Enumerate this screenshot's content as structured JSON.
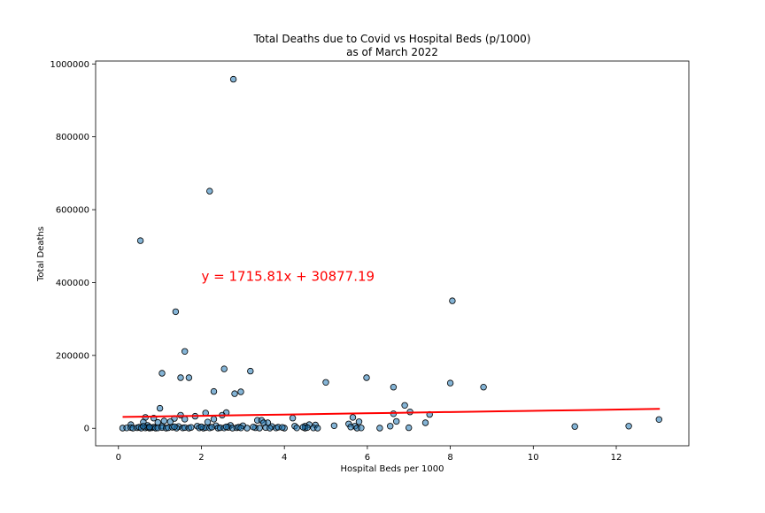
{
  "chart_data": {
    "type": "scatter",
    "title": "Total Deaths due to Covid vs Hospital Beds (p/1000)",
    "subtitle": "as of March 2022",
    "xlabel": "Hospital Beds per 1000",
    "ylabel": "Total Deaths",
    "xlim": [
      -0.55,
      13.75
    ],
    "ylim": [
      -48000,
      1008000
    ],
    "xticks": [
      0,
      2,
      4,
      6,
      8,
      10,
      12
    ],
    "yticks": [
      0,
      200000,
      400000,
      600000,
      800000,
      1000000
    ],
    "grid": false,
    "legend": "none",
    "colors": {
      "points": "#1f77b4",
      "point_edge": "#000000",
      "regression": "#ff0000",
      "annotation": "#ff0000"
    },
    "annotation": {
      "text": "y = 1715.81x + 30877.19",
      "x": 2.0,
      "y": 405000
    },
    "regression": {
      "slope": 1715.81,
      "intercept": 30877.19,
      "x_range": [
        0.1,
        13.05
      ]
    },
    "points": [
      [
        2.77,
        958000
      ],
      [
        2.2,
        651000
      ],
      [
        0.53,
        515000
      ],
      [
        1.38,
        320000
      ],
      [
        8.05,
        350000
      ],
      [
        1.6,
        211000
      ],
      [
        2.55,
        163000
      ],
      [
        3.18,
        157000
      ],
      [
        1.05,
        151000
      ],
      [
        1.5,
        139000
      ],
      [
        1.7,
        139000
      ],
      [
        5.98,
        139000
      ],
      [
        5.0,
        126000
      ],
      [
        8.0,
        124000
      ],
      [
        8.8,
        113000
      ],
      [
        6.63,
        113000
      ],
      [
        2.3,
        101000
      ],
      [
        2.95,
        100000
      ],
      [
        2.8,
        95000
      ],
      [
        6.9,
        63000
      ],
      [
        1.0,
        55000
      ],
      [
        2.6,
        43000
      ],
      [
        2.1,
        42000
      ],
      [
        7.03,
        45000
      ],
      [
        7.5,
        38000
      ],
      [
        6.63,
        40000
      ],
      [
        2.5,
        36000
      ],
      [
        1.5,
        36000
      ],
      [
        1.85,
        33000
      ],
      [
        0.65,
        30000
      ],
      [
        0.85,
        28000
      ],
      [
        1.35,
        27000
      ],
      [
        1.6,
        25000
      ],
      [
        2.3,
        25000
      ],
      [
        4.2,
        28000
      ],
      [
        5.65,
        30000
      ],
      [
        13.03,
        24000
      ],
      [
        3.35,
        22000
      ],
      [
        3.45,
        22000
      ],
      [
        6.7,
        19000
      ],
      [
        7.4,
        15000
      ],
      [
        5.8,
        18000
      ],
      [
        1.1,
        20000
      ],
      [
        1.25,
        18000
      ],
      [
        0.6,
        17000
      ],
      [
        0.95,
        16000
      ],
      [
        2.15,
        17000
      ],
      [
        3.6,
        15000
      ],
      [
        3.5,
        15000
      ],
      [
        5.55,
        12000
      ],
      [
        4.6,
        10000
      ],
      [
        4.75,
        9000
      ],
      [
        0.3,
        10000
      ],
      [
        0.7,
        8000
      ],
      [
        1.05,
        6000
      ],
      [
        1.45,
        5000
      ],
      [
        1.9,
        6000
      ],
      [
        2.35,
        7000
      ],
      [
        2.7,
        8000
      ],
      [
        3.0,
        7000
      ],
      [
        3.7,
        5000
      ],
      [
        4.25,
        6000
      ],
      [
        4.5,
        6000
      ],
      [
        5.2,
        7000
      ],
      [
        5.7,
        6000
      ],
      [
        6.55,
        6000
      ],
      [
        11.0,
        5000
      ],
      [
        12.3,
        6000
      ],
      [
        0.1,
        500
      ],
      [
        0.2,
        1000
      ],
      [
        0.3,
        2000
      ],
      [
        0.35,
        500
      ],
      [
        0.45,
        1500
      ],
      [
        0.5,
        3000
      ],
      [
        0.55,
        500
      ],
      [
        0.65,
        1000
      ],
      [
        0.7,
        2500
      ],
      [
        0.75,
        500
      ],
      [
        0.8,
        1500
      ],
      [
        0.85,
        3000
      ],
      [
        0.9,
        500
      ],
      [
        0.95,
        1000
      ],
      [
        1.05,
        2000
      ],
      [
        1.15,
        500
      ],
      [
        1.2,
        1500
      ],
      [
        1.3,
        3000
      ],
      [
        1.4,
        500
      ],
      [
        1.55,
        1000
      ],
      [
        1.6,
        2000
      ],
      [
        1.7,
        500
      ],
      [
        1.75,
        2500
      ],
      [
        1.95,
        1000
      ],
      [
        2.05,
        500
      ],
      [
        2.1,
        2000
      ],
      [
        2.2,
        1000
      ],
      [
        2.25,
        3000
      ],
      [
        2.4,
        500
      ],
      [
        2.45,
        1500
      ],
      [
        2.55,
        1000
      ],
      [
        2.65,
        2500
      ],
      [
        2.75,
        500
      ],
      [
        2.85,
        1500
      ],
      [
        2.9,
        3000
      ],
      [
        2.95,
        1000
      ],
      [
        3.1,
        500
      ],
      [
        3.3,
        1500
      ],
      [
        3.4,
        500
      ],
      [
        3.55,
        2000
      ],
      [
        3.65,
        500
      ],
      [
        3.8,
        1000
      ],
      [
        3.85,
        3000
      ],
      [
        4.0,
        500
      ],
      [
        4.3,
        1000
      ],
      [
        4.5,
        500
      ],
      [
        4.55,
        2000
      ],
      [
        4.7,
        1000
      ],
      [
        4.8,
        500
      ],
      [
        5.75,
        500
      ],
      [
        5.85,
        1000
      ],
      [
        6.3,
        500
      ],
      [
        7.0,
        1500
      ],
      [
        0.6,
        5500
      ],
      [
        1.35,
        4500
      ],
      [
        2.0,
        4000
      ],
      [
        3.25,
        3500
      ],
      [
        3.95,
        2500
      ],
      [
        5.6,
        3500
      ],
      [
        4.45,
        3000
      ],
      [
        2.6,
        4000
      ],
      [
        0.75,
        3500
      ]
    ]
  }
}
